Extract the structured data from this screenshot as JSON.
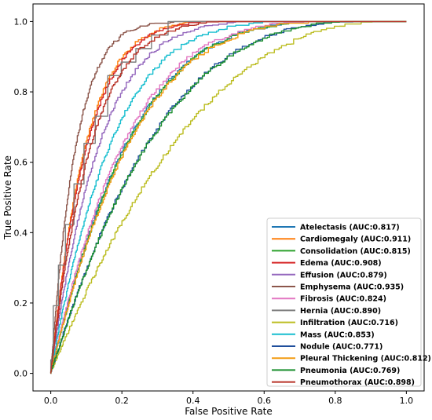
{
  "chart_data": {
    "type": "line",
    "title": "",
    "xlabel": "False Positive Rate",
    "ylabel": "True Positive Rate",
    "xlim": [
      -0.05,
      1.05
    ],
    "ylim": [
      -0.05,
      1.05
    ],
    "xticks": [
      "0.0",
      "0.2",
      "0.4",
      "0.6",
      "0.8",
      "1.0"
    ],
    "yticks": [
      "0.0",
      "0.2",
      "0.4",
      "0.6",
      "0.8",
      "1.0"
    ],
    "grid": false,
    "legend_position": "lower-right",
    "series": [
      {
        "name": "Atelectasis (AUC:0.817)",
        "color": "#1f77b4",
        "auc": 0.817
      },
      {
        "name": "Cardiomegaly (AUC:0.911)",
        "color": "#ff7f0e",
        "auc": 0.911
      },
      {
        "name": "Consolidation (AUC:0.815)",
        "color": "#2ca02c",
        "auc": 0.815
      },
      {
        "name": "Edema (AUC:0.908)",
        "color": "#d62728",
        "auc": 0.908
      },
      {
        "name": "Effusion (AUC:0.879)",
        "color": "#9467bd",
        "auc": 0.879
      },
      {
        "name": "Emphysema (AUC:0.935)",
        "color": "#8c564b",
        "auc": 0.935
      },
      {
        "name": "Fibrosis (AUC:0.824)",
        "color": "#e377c2",
        "auc": 0.824
      },
      {
        "name": "Hernia (AUC:0.890)",
        "color": "#7f7f7f",
        "auc": 0.89,
        "stepped": true
      },
      {
        "name": "Infiltration (AUC:0.716)",
        "color": "#bcbd22",
        "auc": 0.716
      },
      {
        "name": "Mass (AUC:0.853)",
        "color": "#17becf",
        "auc": 0.853
      },
      {
        "name": "Nodule (AUC:0.771)",
        "color": "#1f4e9c",
        "auc": 0.771
      },
      {
        "name": "Pleural Thickening (AUC:0.812)",
        "color": "#f39c12",
        "auc": 0.812
      },
      {
        "name": "Pneumonia (AUC:0.769)",
        "color": "#1a8f2e",
        "auc": 0.769
      },
      {
        "name": "Pneumothorax (AUC:0.898)",
        "color": "#b83227",
        "auc": 0.898
      }
    ]
  }
}
